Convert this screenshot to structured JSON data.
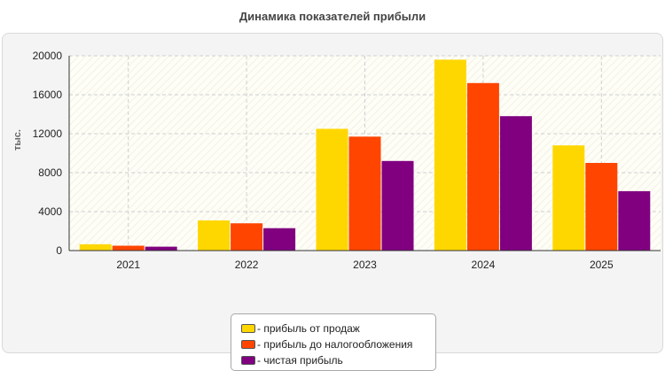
{
  "chart_data": {
    "type": "bar",
    "title": "Динамика показателей прибыли",
    "ylabel": "тыс.",
    "xlabel": "",
    "categories": [
      "2021",
      "2022",
      "2023",
      "2024",
      "2025"
    ],
    "ylim": [
      0,
      20000
    ],
    "yticks": [
      0,
      4000,
      8000,
      12000,
      16000,
      20000
    ],
    "grid": true,
    "legend_position": "bottom",
    "series": [
      {
        "name": "- прибыль от продаж",
        "color": "#ffd700",
        "values": [
          650,
          3100,
          12500,
          19600,
          10800
        ]
      },
      {
        "name": "- прибыль до налогообложения",
        "color": "#ff4500",
        "values": [
          500,
          2800,
          11700,
          17200,
          9000
        ]
      },
      {
        "name": "- чистая прибыль",
        "color": "#800080",
        "values": [
          400,
          2300,
          9200,
          13800,
          6100
        ]
      }
    ]
  }
}
